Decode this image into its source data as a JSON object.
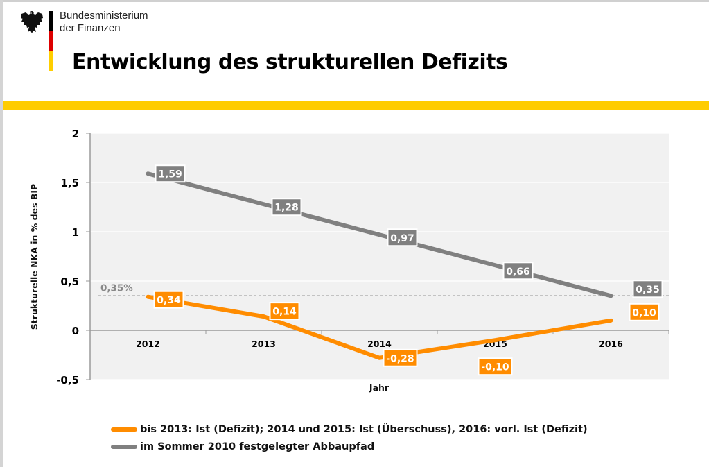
{
  "header": {
    "ministry_line1": "Bundesministerium",
    "ministry_line2": "der Finanzen",
    "logo_icon": "federal-eagle-icon",
    "flag_colors": [
      "#000000",
      "#dd0000",
      "#ffce00"
    ],
    "title": "Entwicklung des strukturellen Defizits",
    "band_color": "#ffcc00"
  },
  "chart_data": {
    "type": "line",
    "title": "Entwicklung des strukturellen Defizits",
    "xlabel": "Jahr",
    "ylabel": "Strukturelle NKA in % des BIP",
    "categories": [
      "2012",
      "2013",
      "2014",
      "2015",
      "2016"
    ],
    "ylim": [
      -0.5,
      2
    ],
    "yticks": [
      -0.5,
      0,
      0.5,
      1,
      1.5,
      2
    ],
    "ytick_labels": [
      "-0,5",
      "0",
      "0,5",
      "1",
      "1,5",
      "2"
    ],
    "grid": true,
    "series": [
      {
        "name": "bis 2013: Ist (Defizit); 2014 und 2015: Ist (Überschuss), 2016: vorl. Ist (Defizit)",
        "color": "#ff8c00",
        "values": [
          0.34,
          0.14,
          -0.28,
          -0.1,
          0.1
        ],
        "labels": [
          "0,34",
          "0,14",
          "-0,28",
          "-0,10",
          "0,10"
        ]
      },
      {
        "name": "im Sommer 2010 festgelegter Abbaupfad",
        "color": "#808080",
        "values": [
          1.59,
          1.28,
          0.97,
          0.66,
          0.35
        ],
        "labels": [
          "1,59",
          "1,28",
          "0,97",
          "0,66",
          "0,35"
        ]
      }
    ],
    "reference_line": {
      "value": 0.35,
      "label": "0,35%",
      "style": "dashed",
      "color": "#777777"
    },
    "legend_position": "bottom-left"
  }
}
